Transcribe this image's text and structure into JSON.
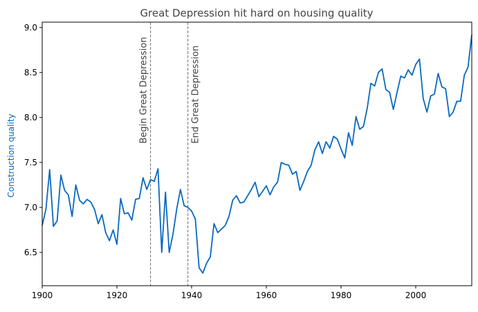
{
  "chart_data": {
    "type": "line",
    "title": "Great Depression hit hard on housing quality",
    "xlabel": "",
    "ylabel": "Construction quality",
    "xlim": [
      1900,
      2015
    ],
    "ylim": [
      6.13,
      9.06
    ],
    "xticks": [
      1900,
      1920,
      1940,
      1960,
      1980,
      2000
    ],
    "yticks": [
      6.5,
      7.0,
      7.5,
      8.0,
      8.5,
      9.0
    ],
    "grid": false,
    "colors": {
      "line": "#0868c0",
      "annotation": "#707070",
      "title": "#444444",
      "ylabel": "#0868c0"
    },
    "annotations": [
      {
        "x": 1929,
        "label": "Begin Great Depression",
        "side": "left"
      },
      {
        "x": 1939,
        "label": "End Great Depression",
        "side": "right"
      }
    ],
    "series": [
      {
        "values": [
          [
            1900,
            6.8
          ],
          [
            1901,
            6.98
          ],
          [
            1902,
            7.42
          ],
          [
            1903,
            6.79
          ],
          [
            1904,
            6.85
          ],
          [
            1905,
            7.36
          ],
          [
            1906,
            7.19
          ],
          [
            1907,
            7.14
          ],
          [
            1908,
            6.9
          ],
          [
            1909,
            7.25
          ],
          [
            1910,
            7.08
          ],
          [
            1911,
            7.04
          ],
          [
            1912,
            7.09
          ],
          [
            1913,
            7.06
          ],
          [
            1914,
            6.98
          ],
          [
            1915,
            6.82
          ],
          [
            1916,
            6.92
          ],
          [
            1917,
            6.72
          ],
          [
            1918,
            6.63
          ],
          [
            1919,
            6.75
          ],
          [
            1920,
            6.59
          ],
          [
            1921,
            7.1
          ],
          [
            1922,
            6.93
          ],
          [
            1923,
            6.94
          ],
          [
            1924,
            6.86
          ],
          [
            1925,
            7.09
          ],
          [
            1926,
            7.1
          ],
          [
            1927,
            7.33
          ],
          [
            1928,
            7.2
          ],
          [
            1929,
            7.31
          ],
          [
            1930,
            7.29
          ],
          [
            1931,
            7.43
          ],
          [
            1932,
            6.5
          ],
          [
            1933,
            7.17
          ],
          [
            1934,
            6.5
          ],
          [
            1935,
            6.7
          ],
          [
            1936,
            6.98
          ],
          [
            1937,
            7.2
          ],
          [
            1938,
            7.02
          ],
          [
            1939,
            7.0
          ],
          [
            1940,
            6.96
          ],
          [
            1941,
            6.87
          ],
          [
            1942,
            6.33
          ],
          [
            1943,
            6.27
          ],
          [
            1944,
            6.38
          ],
          [
            1945,
            6.45
          ],
          [
            1946,
            6.82
          ],
          [
            1947,
            6.72
          ],
          [
            1948,
            6.76
          ],
          [
            1949,
            6.8
          ],
          [
            1950,
            6.9
          ],
          [
            1951,
            7.08
          ],
          [
            1952,
            7.13
          ],
          [
            1953,
            7.05
          ],
          [
            1954,
            7.06
          ],
          [
            1955,
            7.13
          ],
          [
            1956,
            7.2
          ],
          [
            1957,
            7.28
          ],
          [
            1958,
            7.12
          ],
          [
            1959,
            7.18
          ],
          [
            1960,
            7.24
          ],
          [
            1961,
            7.14
          ],
          [
            1962,
            7.23
          ],
          [
            1963,
            7.28
          ],
          [
            1964,
            7.5
          ],
          [
            1965,
            7.48
          ],
          [
            1966,
            7.47
          ],
          [
            1967,
            7.37
          ],
          [
            1968,
            7.4
          ],
          [
            1969,
            7.19
          ],
          [
            1970,
            7.29
          ],
          [
            1971,
            7.4
          ],
          [
            1972,
            7.47
          ],
          [
            1973,
            7.64
          ],
          [
            1974,
            7.73
          ],
          [
            1975,
            7.6
          ],
          [
            1976,
            7.73
          ],
          [
            1977,
            7.66
          ],
          [
            1978,
            7.79
          ],
          [
            1979,
            7.76
          ],
          [
            1980,
            7.65
          ],
          [
            1981,
            7.55
          ],
          [
            1982,
            7.83
          ],
          [
            1983,
            7.69
          ],
          [
            1984,
            8.01
          ],
          [
            1985,
            7.87
          ],
          [
            1986,
            7.9
          ],
          [
            1987,
            8.1
          ],
          [
            1988,
            8.38
          ],
          [
            1989,
            8.35
          ],
          [
            1990,
            8.5
          ],
          [
            1991,
            8.54
          ],
          [
            1992,
            8.31
          ],
          [
            1993,
            8.28
          ],
          [
            1994,
            8.09
          ],
          [
            1995,
            8.28
          ],
          [
            1996,
            8.46
          ],
          [
            1997,
            8.44
          ],
          [
            1998,
            8.53
          ],
          [
            1999,
            8.47
          ],
          [
            2000,
            8.59
          ],
          [
            2001,
            8.65
          ],
          [
            2002,
            8.21
          ],
          [
            2003,
            8.06
          ],
          [
            2004,
            8.24
          ],
          [
            2005,
            8.26
          ],
          [
            2006,
            8.49
          ],
          [
            2007,
            8.34
          ],
          [
            2008,
            8.32
          ],
          [
            2009,
            8.01
          ],
          [
            2010,
            8.06
          ],
          [
            2011,
            8.18
          ],
          [
            2012,
            8.18
          ],
          [
            2013,
            8.47
          ],
          [
            2014,
            8.56
          ],
          [
            2015,
            8.92
          ]
        ]
      }
    ]
  }
}
